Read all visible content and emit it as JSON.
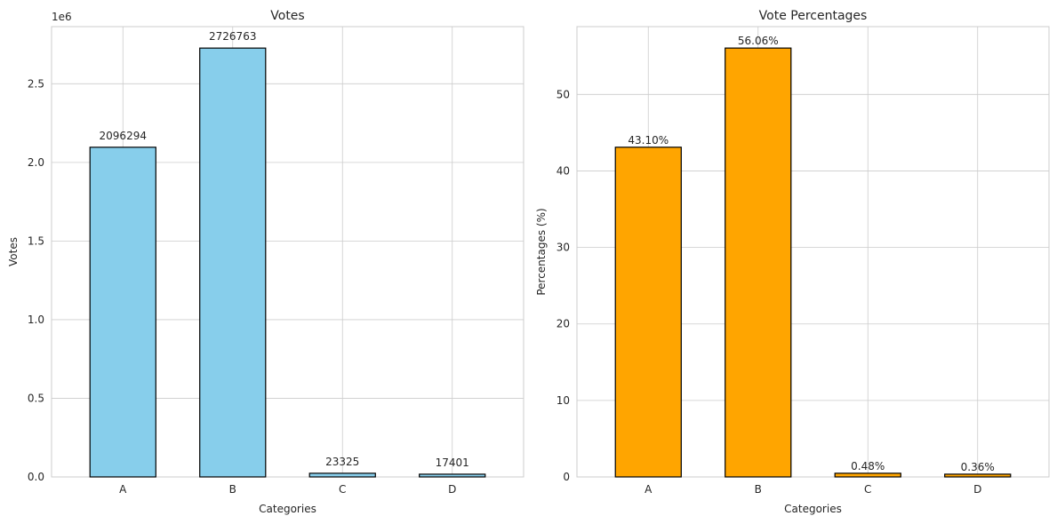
{
  "chart_data": [
    {
      "type": "bar",
      "title": "Votes",
      "xlabel": "Categories",
      "ylabel": "Votes",
      "categories": [
        "A",
        "B",
        "C",
        "D"
      ],
      "values": [
        2096294,
        2726763,
        23325,
        17401
      ],
      "data_labels": [
        "2096294",
        "2726763",
        "23325",
        "17401"
      ],
      "ylim": [
        0,
        2863101
      ],
      "yticks": [
        0,
        500000,
        1000000,
        1500000,
        2000000,
        2500000
      ],
      "ytick_labels": [
        "0.0",
        "0.5",
        "1.0",
        "1.5",
        "2.0",
        "2.5"
      ],
      "offset_text": "1e6",
      "bar_color": "#87CEEB",
      "edge_color": "#000000",
      "grid": true
    },
    {
      "type": "bar",
      "title": "Vote Percentages",
      "xlabel": "Categories",
      "ylabel": "Percentages (%)",
      "categories": [
        "A",
        "B",
        "C",
        "D"
      ],
      "values": [
        43.1,
        56.06,
        0.48,
        0.36
      ],
      "data_labels": [
        "43.10%",
        "56.06%",
        "0.48%",
        "0.36%"
      ],
      "ylim": [
        0,
        58.86
      ],
      "yticks": [
        0,
        10,
        20,
        30,
        40,
        50
      ],
      "ytick_labels": [
        "0",
        "10",
        "20",
        "30",
        "40",
        "50"
      ],
      "offset_text": "",
      "bar_color": "#FFA500",
      "edge_color": "#000000",
      "grid": true
    }
  ]
}
